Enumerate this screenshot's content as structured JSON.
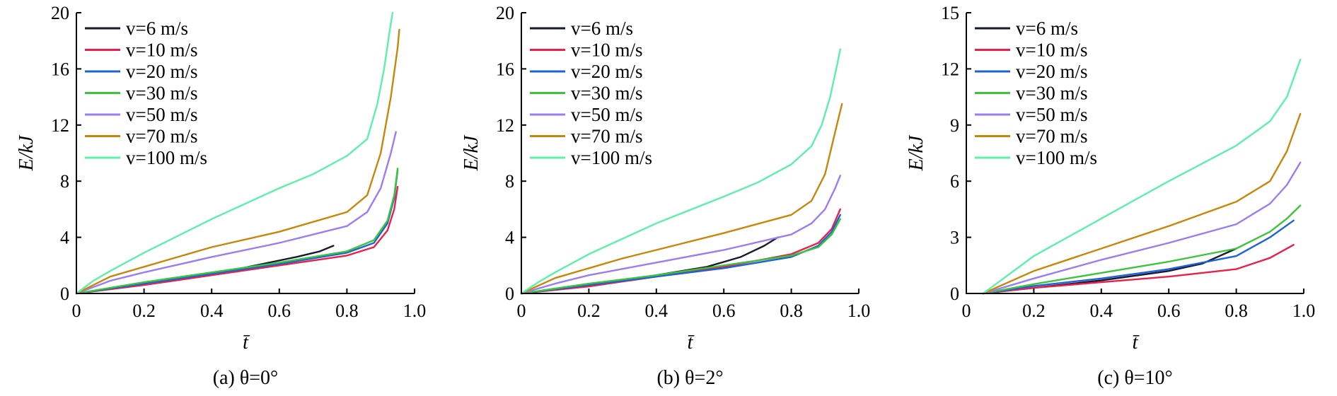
{
  "figure": {
    "series_style": [
      {
        "label": "v=6 m/s",
        "color": "#1a1a2e"
      },
      {
        "label": "v=10 m/s",
        "color": "#e8204a"
      },
      {
        "label": "v=20 m/s",
        "color": "#1e62d8"
      },
      {
        "label": "v=30 m/s",
        "color": "#3cc43c"
      },
      {
        "label": "v=50 m/s",
        "color": "#9b7cf2"
      },
      {
        "label": "v=70 m/s",
        "color": "#c8860a"
      },
      {
        "label": "v=100 m/s",
        "color": "#5cf0a8"
      }
    ]
  },
  "chart_data": [
    {
      "type": "line",
      "caption": "(a) θ=0°",
      "xlabel": "t̄",
      "ylabel": "E/kJ",
      "xlim": [
        0,
        1.0
      ],
      "ylim": [
        0,
        20
      ],
      "xticks": [
        "0",
        "0.2",
        "0.4",
        "0.6",
        "0.8",
        "1.0"
      ],
      "yticks": [
        "0",
        "4",
        "8",
        "12",
        "16",
        "20"
      ],
      "legend": "top-left",
      "series": [
        {
          "name": "v=6 m/s",
          "x": [
            0.45,
            0.55,
            0.65,
            0.72,
            0.76
          ],
          "y": [
            1.6,
            2.1,
            2.6,
            3.0,
            3.4
          ]
        },
        {
          "name": "v=10 m/s",
          "x": [
            0.0,
            0.2,
            0.4,
            0.6,
            0.8,
            0.88,
            0.92,
            0.94,
            0.95
          ],
          "y": [
            0.0,
            0.6,
            1.3,
            2.0,
            2.7,
            3.3,
            4.5,
            6.0,
            7.6
          ]
        },
        {
          "name": "v=20 m/s",
          "x": [
            0.0,
            0.2,
            0.4,
            0.6,
            0.8,
            0.88,
            0.92,
            0.94,
            0.95
          ],
          "y": [
            0.0,
            0.7,
            1.4,
            2.1,
            2.9,
            3.6,
            5.0,
            6.8,
            8.8
          ]
        },
        {
          "name": "v=30 m/s",
          "x": [
            0.0,
            0.2,
            0.4,
            0.6,
            0.8,
            0.88,
            0.92,
            0.94,
            0.95
          ],
          "y": [
            0.0,
            0.8,
            1.5,
            2.2,
            3.0,
            3.8,
            5.2,
            7.0,
            8.9
          ]
        },
        {
          "name": "v=50 m/s",
          "x": [
            0.0,
            0.1,
            0.2,
            0.4,
            0.6,
            0.8,
            0.86,
            0.9,
            0.93,
            0.945
          ],
          "y": [
            0.0,
            0.9,
            1.5,
            2.6,
            3.6,
            4.8,
            5.8,
            7.5,
            10.0,
            11.5
          ]
        },
        {
          "name": "v=70 m/s",
          "x": [
            0.0,
            0.1,
            0.2,
            0.3,
            0.4,
            0.6,
            0.8,
            0.86,
            0.9,
            0.93,
            0.95,
            0.955
          ],
          "y": [
            0.0,
            1.2,
            1.9,
            2.6,
            3.3,
            4.4,
            5.8,
            7.0,
            10.0,
            14.0,
            17.5,
            18.8
          ]
        },
        {
          "name": "v=100 m/s",
          "x": [
            0.0,
            0.05,
            0.1,
            0.2,
            0.4,
            0.6,
            0.7,
            0.8,
            0.86,
            0.89,
            0.91,
            0.925,
            0.935
          ],
          "y": [
            0.0,
            0.9,
            1.6,
            2.9,
            5.3,
            7.5,
            8.5,
            9.8,
            11.0,
            13.5,
            16.0,
            18.5,
            20.0
          ]
        }
      ]
    },
    {
      "type": "line",
      "caption": "(b) θ=2°",
      "xlabel": "t̄",
      "ylabel": "E/kJ",
      "xlim": [
        0,
        1.0
      ],
      "ylim": [
        0,
        20
      ],
      "xticks": [
        "0",
        "0.2",
        "0.4",
        "0.6",
        "0.8",
        "1.0"
      ],
      "yticks": [
        "0",
        "4",
        "8",
        "12",
        "16",
        "20"
      ],
      "legend": "top-left",
      "series": [
        {
          "name": "v=6 m/s",
          "x": [
            0.0,
            0.2,
            0.4,
            0.55,
            0.65,
            0.72,
            0.76
          ],
          "y": [
            0.0,
            0.6,
            1.3,
            1.9,
            2.6,
            3.4,
            4.0
          ]
        },
        {
          "name": "v=10 m/s",
          "x": [
            0.0,
            0.2,
            0.4,
            0.6,
            0.8,
            0.88,
            0.92,
            0.945
          ],
          "y": [
            0.0,
            0.5,
            1.2,
            1.9,
            2.8,
            3.6,
            4.6,
            6.0
          ]
        },
        {
          "name": "v=20 m/s",
          "x": [
            0.0,
            0.2,
            0.4,
            0.6,
            0.8,
            0.88,
            0.92,
            0.945
          ],
          "y": [
            0.0,
            0.6,
            1.2,
            1.8,
            2.6,
            3.4,
            4.4,
            5.6
          ]
        },
        {
          "name": "v=30 m/s",
          "x": [
            0.0,
            0.2,
            0.4,
            0.6,
            0.8,
            0.88,
            0.92,
            0.945
          ],
          "y": [
            0.0,
            0.7,
            1.3,
            2.0,
            2.7,
            3.3,
            4.2,
            5.3
          ]
        },
        {
          "name": "v=50 m/s",
          "x": [
            0.0,
            0.1,
            0.2,
            0.4,
            0.6,
            0.8,
            0.86,
            0.9,
            0.93,
            0.945
          ],
          "y": [
            0.0,
            0.7,
            1.3,
            2.2,
            3.1,
            4.2,
            5.0,
            6.0,
            7.5,
            8.4
          ]
        },
        {
          "name": "v=70 m/s",
          "x": [
            0.0,
            0.1,
            0.2,
            0.3,
            0.4,
            0.6,
            0.8,
            0.86,
            0.9,
            0.93,
            0.95
          ],
          "y": [
            0.0,
            1.1,
            1.8,
            2.5,
            3.1,
            4.3,
            5.6,
            6.6,
            8.5,
            11.5,
            13.5
          ]
        },
        {
          "name": "v=100 m/s",
          "x": [
            0.0,
            0.05,
            0.1,
            0.2,
            0.4,
            0.6,
            0.7,
            0.8,
            0.86,
            0.89,
            0.915,
            0.935,
            0.945
          ],
          "y": [
            0.0,
            0.8,
            1.5,
            2.8,
            5.0,
            6.9,
            7.9,
            9.2,
            10.5,
            12.0,
            14.0,
            16.2,
            17.4
          ]
        }
      ]
    },
    {
      "type": "line",
      "caption": "(c) θ=10°",
      "xlabel": "t̄",
      "ylabel": "E/kJ",
      "xlim": [
        0,
        1.0
      ],
      "ylim": [
        0,
        15
      ],
      "xticks": [
        "0",
        "0.2",
        "0.4",
        "0.6",
        "0.8",
        "1.0"
      ],
      "yticks": [
        "0",
        "3",
        "6",
        "9",
        "12",
        "15"
      ],
      "legend": "top-left",
      "series": [
        {
          "name": "v=6 m/s",
          "x": [
            0.05,
            0.2,
            0.4,
            0.6,
            0.7,
            0.8
          ],
          "y": [
            0.0,
            0.3,
            0.7,
            1.2,
            1.6,
            2.4
          ]
        },
        {
          "name": "v=10 m/s",
          "x": [
            0.05,
            0.2,
            0.4,
            0.6,
            0.8,
            0.9,
            0.97
          ],
          "y": [
            0.0,
            0.3,
            0.6,
            0.9,
            1.3,
            1.9,
            2.6
          ]
        },
        {
          "name": "v=20 m/s",
          "x": [
            0.05,
            0.2,
            0.4,
            0.6,
            0.8,
            0.9,
            0.97
          ],
          "y": [
            0.0,
            0.4,
            0.8,
            1.3,
            2.0,
            3.0,
            3.9
          ]
        },
        {
          "name": "v=30 m/s",
          "x": [
            0.05,
            0.2,
            0.4,
            0.6,
            0.8,
            0.9,
            0.95,
            0.99
          ],
          "y": [
            0.0,
            0.5,
            1.1,
            1.7,
            2.4,
            3.3,
            4.0,
            4.7
          ]
        },
        {
          "name": "v=50 m/s",
          "x": [
            0.05,
            0.2,
            0.4,
            0.6,
            0.8,
            0.9,
            0.95,
            0.99
          ],
          "y": [
            0.0,
            0.8,
            1.8,
            2.7,
            3.7,
            4.8,
            5.8,
            7.0
          ]
        },
        {
          "name": "v=70 m/s",
          "x": [
            0.05,
            0.2,
            0.4,
            0.6,
            0.8,
            0.9,
            0.95,
            0.99
          ],
          "y": [
            0.0,
            1.2,
            2.4,
            3.6,
            4.9,
            6.0,
            7.6,
            9.6
          ]
        },
        {
          "name": "v=100 m/s",
          "x": [
            0.05,
            0.2,
            0.4,
            0.6,
            0.8,
            0.9,
            0.95,
            0.99
          ],
          "y": [
            0.0,
            2.0,
            4.0,
            6.0,
            7.9,
            9.2,
            10.5,
            12.5
          ]
        }
      ]
    }
  ]
}
